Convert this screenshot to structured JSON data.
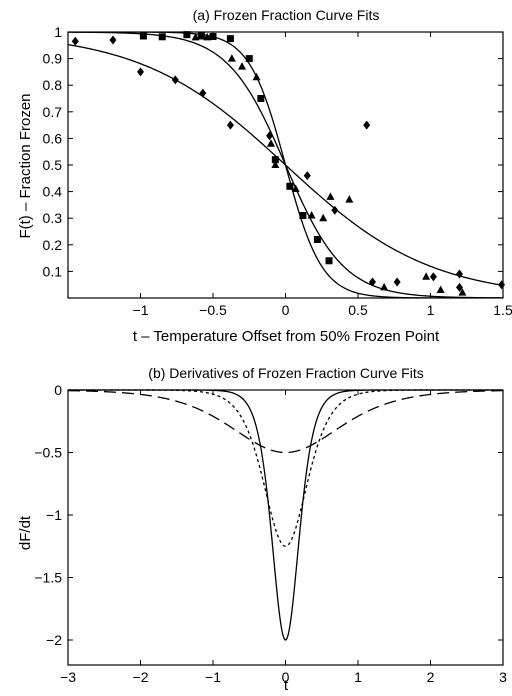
{
  "chart_data": [
    {
      "type": "scatter",
      "title": "(a)   Frozen Fraction Curve Fits",
      "xlabel": "t – Temperature Offset from 50% Frozen Point",
      "ylabel": "F(t) – Fraction Frozen",
      "xlim": [
        -1.5,
        1.5
      ],
      "ylim": [
        0,
        1
      ],
      "xticks": [
        -1,
        -0.5,
        0,
        0.5,
        1,
        1.5
      ],
      "xtick_labels": [
        "−1",
        "−0.5",
        "0",
        "0.5",
        "1",
        "1.5"
      ],
      "yticks": [
        0.1,
        0.2,
        0.3,
        0.4,
        0.5,
        0.6,
        0.7,
        0.8,
        0.9,
        1
      ],
      "ytick_labels": [
        "0.1",
        "0.2",
        "0.3",
        "0.4",
        "0.5",
        "0.6",
        "0.7",
        "0.8",
        "0.9",
        "1"
      ],
      "grid": false,
      "series": [
        {
          "marker": "square",
          "points": [
            [
              -0.98,
              0.985
            ],
            [
              -0.85,
              0.982
            ],
            [
              -0.68,
              0.99
            ],
            [
              -0.58,
              0.985
            ],
            [
              -0.5,
              0.983
            ],
            [
              -0.38,
              0.975
            ],
            [
              -0.25,
              0.9
            ],
            [
              -0.17,
              0.75
            ],
            [
              -0.07,
              0.52
            ],
            [
              0.03,
              0.42
            ],
            [
              0.12,
              0.31
            ],
            [
              0.22,
              0.22
            ],
            [
              0.3,
              0.14
            ]
          ]
        },
        {
          "marker": "triangle",
          "points": [
            [
              -0.62,
              0.98
            ],
            [
              -0.54,
              0.98
            ],
            [
              -0.37,
              0.9
            ],
            [
              -0.3,
              0.87
            ],
            [
              -0.2,
              0.83
            ],
            [
              -0.1,
              0.58
            ],
            [
              -0.07,
              0.5
            ],
            [
              0.07,
              0.41
            ],
            [
              0.18,
              0.31
            ],
            [
              0.26,
              0.3
            ],
            [
              0.31,
              0.38
            ],
            [
              0.44,
              0.37
            ],
            [
              0.68,
              0.04
            ],
            [
              0.97,
              0.08
            ],
            [
              1.07,
              0.03
            ],
            [
              1.22,
              0.02
            ]
          ]
        },
        {
          "marker": "diamond",
          "points": [
            [
              -1.45,
              0.965
            ],
            [
              -1.19,
              0.97
            ],
            [
              -1.0,
              0.85
            ],
            [
              -0.76,
              0.82
            ],
            [
              -0.57,
              0.77
            ],
            [
              -0.38,
              0.65
            ],
            [
              -0.11,
              0.61
            ],
            [
              0.15,
              0.46
            ],
            [
              0.34,
              0.33
            ],
            [
              0.56,
              0.65
            ],
            [
              0.6,
              0.06
            ],
            [
              0.77,
              0.06
            ],
            [
              1.02,
              0.08
            ],
            [
              1.2,
              0.09
            ],
            [
              1.2,
              0.04
            ],
            [
              1.49,
              0.05
            ]
          ]
        }
      ],
      "fit_curves": [
        {
          "kind": "logistic",
          "slope": 8
        },
        {
          "kind": "logistic",
          "slope": 5
        },
        {
          "kind": "logistic",
          "slope": 2
        }
      ]
    },
    {
      "type": "line",
      "title": "(b)  Derivatives of Frozen Fraction Curve Fits",
      "xlabel": "t",
      "ylabel": "dF/dt",
      "xlim": [
        -3,
        3
      ],
      "ylim": [
        -2.2,
        0
      ],
      "xticks": [
        -3,
        -2,
        -1,
        0,
        1,
        2,
        3
      ],
      "xtick_labels": [
        "−3",
        "−2",
        "−1",
        "0",
        "1",
        "2",
        "3"
      ],
      "yticks": [
        0,
        -0.5,
        -1,
        -1.5,
        -2
      ],
      "ytick_labels": [
        "0",
        "−0.5",
        "−1",
        "−1.5",
        "−2"
      ],
      "grid": false,
      "series": [
        {
          "line_style": "solid",
          "slope": 8
        },
        {
          "line_style": "dotted",
          "slope": 5
        },
        {
          "line_style": "dashed",
          "slope": 2
        }
      ]
    }
  ]
}
